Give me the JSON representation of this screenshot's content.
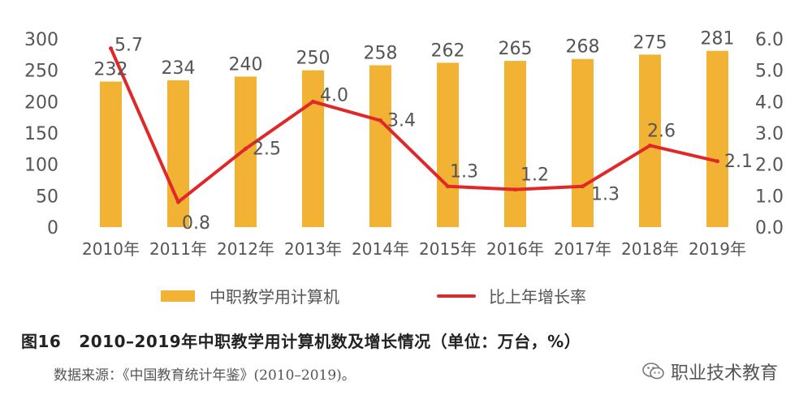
{
  "chart_data": {
    "type": "bar",
    "categories": [
      "2010年",
      "2011年",
      "2012年",
      "2013年",
      "2014年",
      "2015年",
      "2016年",
      "2017年",
      "2018年",
      "2019年"
    ],
    "series": [
      {
        "name": "中职教学用计算机",
        "type": "bar",
        "axis": "left",
        "values": [
          232,
          234,
          240,
          250,
          258,
          262,
          265,
          268,
          275,
          281
        ],
        "labels": [
          "232",
          "234",
          "240",
          "250",
          "258",
          "262",
          "265",
          "268",
          "275",
          "281"
        ]
      },
      {
        "name": "比上年增长率",
        "type": "line",
        "axis": "right",
        "values": [
          5.7,
          0.8,
          2.5,
          4.0,
          3.4,
          1.3,
          1.2,
          1.3,
          2.6,
          2.1
        ],
        "labels": [
          "5.7",
          "0.8",
          "2.5",
          "4.0",
          "3.4",
          "1.3",
          "1.2",
          "1.3",
          "2.6",
          "2.1"
        ]
      }
    ],
    "ylim_left": [
      0,
      300
    ],
    "yticks_left": [
      "0",
      "50",
      "100",
      "150",
      "200",
      "250",
      "300"
    ],
    "ylim_right": [
      0,
      6
    ],
    "yticks_right": [
      "0.0",
      "1.0",
      "2.0",
      "3.0",
      "4.0",
      "5.0",
      "6.0"
    ],
    "grid": false,
    "legend_position": "bottom",
    "colors": {
      "bar": "#f2b233",
      "line": "#e02828",
      "axis_text": "#555555"
    }
  },
  "caption": {
    "figure_number": "图16",
    "title": "2010–2019年中职教学用计算机数及增长情况（单位：万台，%）"
  },
  "source": "数据来源：《中国教育统计年鉴》(2010–2019)。",
  "watermark": {
    "icon": "wechat-icon",
    "text": "职业技术教育"
  }
}
